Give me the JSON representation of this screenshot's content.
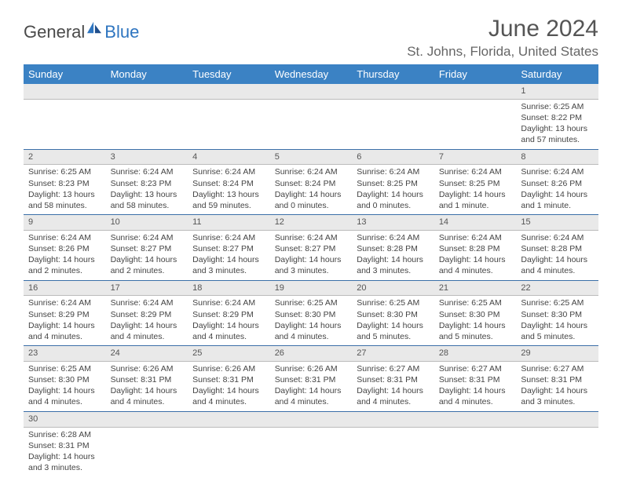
{
  "brand": {
    "text1": "General",
    "text2": "Blue"
  },
  "title": "June 2024",
  "location": "St. Johns, Florida, United States",
  "colors": {
    "header_bg": "#3b82c4",
    "header_text": "#ffffff",
    "daynum_bg": "#e9e9e9",
    "row_border": "#3b6fa8",
    "brand_blue": "#2e75c0",
    "brand_gray": "#4a4a4a",
    "body_text": "#444444"
  },
  "weekdays": [
    "Sunday",
    "Monday",
    "Tuesday",
    "Wednesday",
    "Thursday",
    "Friday",
    "Saturday"
  ],
  "weeks": [
    [
      {
        "blank": true
      },
      {
        "blank": true
      },
      {
        "blank": true
      },
      {
        "blank": true
      },
      {
        "blank": true
      },
      {
        "blank": true
      },
      {
        "day": "1",
        "sunrise": "Sunrise: 6:25 AM",
        "sunset": "Sunset: 8:22 PM",
        "daylight": "Daylight: 13 hours and 57 minutes."
      }
    ],
    [
      {
        "day": "2",
        "sunrise": "Sunrise: 6:25 AM",
        "sunset": "Sunset: 8:23 PM",
        "daylight": "Daylight: 13 hours and 58 minutes."
      },
      {
        "day": "3",
        "sunrise": "Sunrise: 6:24 AM",
        "sunset": "Sunset: 8:23 PM",
        "daylight": "Daylight: 13 hours and 58 minutes."
      },
      {
        "day": "4",
        "sunrise": "Sunrise: 6:24 AM",
        "sunset": "Sunset: 8:24 PM",
        "daylight": "Daylight: 13 hours and 59 minutes."
      },
      {
        "day": "5",
        "sunrise": "Sunrise: 6:24 AM",
        "sunset": "Sunset: 8:24 PM",
        "daylight": "Daylight: 14 hours and 0 minutes."
      },
      {
        "day": "6",
        "sunrise": "Sunrise: 6:24 AM",
        "sunset": "Sunset: 8:25 PM",
        "daylight": "Daylight: 14 hours and 0 minutes."
      },
      {
        "day": "7",
        "sunrise": "Sunrise: 6:24 AM",
        "sunset": "Sunset: 8:25 PM",
        "daylight": "Daylight: 14 hours and 1 minute."
      },
      {
        "day": "8",
        "sunrise": "Sunrise: 6:24 AM",
        "sunset": "Sunset: 8:26 PM",
        "daylight": "Daylight: 14 hours and 1 minute."
      }
    ],
    [
      {
        "day": "9",
        "sunrise": "Sunrise: 6:24 AM",
        "sunset": "Sunset: 8:26 PM",
        "daylight": "Daylight: 14 hours and 2 minutes."
      },
      {
        "day": "10",
        "sunrise": "Sunrise: 6:24 AM",
        "sunset": "Sunset: 8:27 PM",
        "daylight": "Daylight: 14 hours and 2 minutes."
      },
      {
        "day": "11",
        "sunrise": "Sunrise: 6:24 AM",
        "sunset": "Sunset: 8:27 PM",
        "daylight": "Daylight: 14 hours and 3 minutes."
      },
      {
        "day": "12",
        "sunrise": "Sunrise: 6:24 AM",
        "sunset": "Sunset: 8:27 PM",
        "daylight": "Daylight: 14 hours and 3 minutes."
      },
      {
        "day": "13",
        "sunrise": "Sunrise: 6:24 AM",
        "sunset": "Sunset: 8:28 PM",
        "daylight": "Daylight: 14 hours and 3 minutes."
      },
      {
        "day": "14",
        "sunrise": "Sunrise: 6:24 AM",
        "sunset": "Sunset: 8:28 PM",
        "daylight": "Daylight: 14 hours and 4 minutes."
      },
      {
        "day": "15",
        "sunrise": "Sunrise: 6:24 AM",
        "sunset": "Sunset: 8:28 PM",
        "daylight": "Daylight: 14 hours and 4 minutes."
      }
    ],
    [
      {
        "day": "16",
        "sunrise": "Sunrise: 6:24 AM",
        "sunset": "Sunset: 8:29 PM",
        "daylight": "Daylight: 14 hours and 4 minutes."
      },
      {
        "day": "17",
        "sunrise": "Sunrise: 6:24 AM",
        "sunset": "Sunset: 8:29 PM",
        "daylight": "Daylight: 14 hours and 4 minutes."
      },
      {
        "day": "18",
        "sunrise": "Sunrise: 6:24 AM",
        "sunset": "Sunset: 8:29 PM",
        "daylight": "Daylight: 14 hours and 4 minutes."
      },
      {
        "day": "19",
        "sunrise": "Sunrise: 6:25 AM",
        "sunset": "Sunset: 8:30 PM",
        "daylight": "Daylight: 14 hours and 4 minutes."
      },
      {
        "day": "20",
        "sunrise": "Sunrise: 6:25 AM",
        "sunset": "Sunset: 8:30 PM",
        "daylight": "Daylight: 14 hours and 5 minutes."
      },
      {
        "day": "21",
        "sunrise": "Sunrise: 6:25 AM",
        "sunset": "Sunset: 8:30 PM",
        "daylight": "Daylight: 14 hours and 5 minutes."
      },
      {
        "day": "22",
        "sunrise": "Sunrise: 6:25 AM",
        "sunset": "Sunset: 8:30 PM",
        "daylight": "Daylight: 14 hours and 5 minutes."
      }
    ],
    [
      {
        "day": "23",
        "sunrise": "Sunrise: 6:25 AM",
        "sunset": "Sunset: 8:30 PM",
        "daylight": "Daylight: 14 hours and 4 minutes."
      },
      {
        "day": "24",
        "sunrise": "Sunrise: 6:26 AM",
        "sunset": "Sunset: 8:31 PM",
        "daylight": "Daylight: 14 hours and 4 minutes."
      },
      {
        "day": "25",
        "sunrise": "Sunrise: 6:26 AM",
        "sunset": "Sunset: 8:31 PM",
        "daylight": "Daylight: 14 hours and 4 minutes."
      },
      {
        "day": "26",
        "sunrise": "Sunrise: 6:26 AM",
        "sunset": "Sunset: 8:31 PM",
        "daylight": "Daylight: 14 hours and 4 minutes."
      },
      {
        "day": "27",
        "sunrise": "Sunrise: 6:27 AM",
        "sunset": "Sunset: 8:31 PM",
        "daylight": "Daylight: 14 hours and 4 minutes."
      },
      {
        "day": "28",
        "sunrise": "Sunrise: 6:27 AM",
        "sunset": "Sunset: 8:31 PM",
        "daylight": "Daylight: 14 hours and 4 minutes."
      },
      {
        "day": "29",
        "sunrise": "Sunrise: 6:27 AM",
        "sunset": "Sunset: 8:31 PM",
        "daylight": "Daylight: 14 hours and 3 minutes."
      }
    ],
    [
      {
        "day": "30",
        "sunrise": "Sunrise: 6:28 AM",
        "sunset": "Sunset: 8:31 PM",
        "daylight": "Daylight: 14 hours and 3 minutes."
      },
      {
        "blank": true
      },
      {
        "blank": true
      },
      {
        "blank": true
      },
      {
        "blank": true
      },
      {
        "blank": true
      },
      {
        "blank": true
      }
    ]
  ]
}
